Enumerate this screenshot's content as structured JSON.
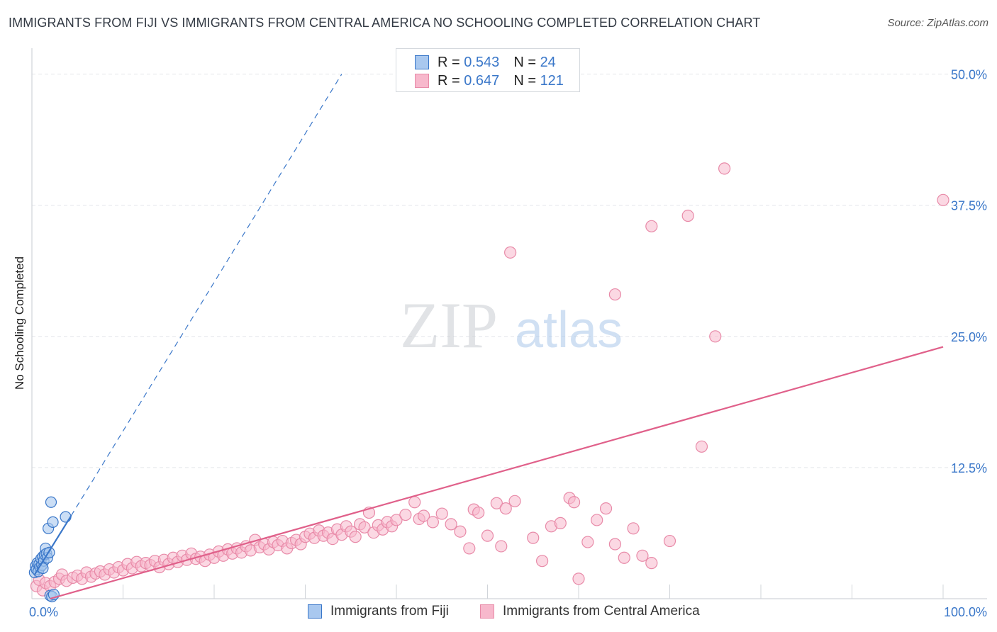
{
  "title": "IMMIGRANTS FROM FIJI VS IMMIGRANTS FROM CENTRAL AMERICA NO SCHOOLING COMPLETED CORRELATION CHART",
  "source": "Source: ZipAtlas.com",
  "watermark": {
    "zip": "ZIP",
    "atlas": "atlas"
  },
  "legend_top": {
    "rows": [
      {
        "r_label": "R =",
        "r_value": "0.543",
        "n_label": "N =",
        "n_value": "24"
      },
      {
        "r_label": "R =",
        "r_value": "0.647",
        "n_label": "N =",
        "n_value": "121"
      }
    ]
  },
  "colors": {
    "fiji_fill": "#a9c8ef",
    "fiji_stroke": "#3a77c9",
    "fiji_line": "#3a77c9",
    "ca_fill": "#f7b8cc",
    "ca_stroke": "#e88aa8",
    "ca_line": "#e0608a",
    "axis_text": "#3a77c9",
    "grid": "#e3e6ea"
  },
  "chart_data": {
    "type": "scatter",
    "title": "IMMIGRANTS FROM FIJI VS IMMIGRANTS FROM CENTRAL AMERICA NO SCHOOLING COMPLETED CORRELATION CHART",
    "xlabel": "",
    "ylabel": "No Schooling Completed",
    "xlim": [
      0,
      100
    ],
    "ylim": [
      0,
      52
    ],
    "x_tick_labels": [
      "0.0%",
      "100.0%"
    ],
    "y_ticks": [
      12.5,
      25.0,
      37.5,
      50.0
    ],
    "y_tick_labels": [
      "12.5%",
      "25.0%",
      "37.5%",
      "50.0%"
    ],
    "grid": true,
    "legend_position": "bottom",
    "series": [
      {
        "name": "Immigrants from Fiji",
        "R": 0.543,
        "N": 24,
        "trend": {
          "x": [
            0.3,
            4.3
          ],
          "y": [
            2.3,
            7.9
          ]
        },
        "trend_extension": {
          "x": [
            4.3,
            34.0
          ],
          "y": [
            7.9,
            50.0
          ]
        },
        "points": [
          {
            "x": 0.3,
            "y": 2.5
          },
          {
            "x": 0.4,
            "y": 3.1
          },
          {
            "x": 0.5,
            "y": 2.8
          },
          {
            "x": 0.6,
            "y": 3.4
          },
          {
            "x": 0.7,
            "y": 2.6
          },
          {
            "x": 0.8,
            "y": 3.3
          },
          {
            "x": 0.9,
            "y": 3.0
          },
          {
            "x": 1.0,
            "y": 3.8
          },
          {
            "x": 1.1,
            "y": 3.2
          },
          {
            "x": 1.2,
            "y": 4.0
          },
          {
            "x": 1.3,
            "y": 3.6
          },
          {
            "x": 1.4,
            "y": 4.2
          },
          {
            "x": 1.5,
            "y": 4.8
          },
          {
            "x": 1.6,
            "y": 4.3
          },
          {
            "x": 1.7,
            "y": 3.9
          },
          {
            "x": 1.8,
            "y": 6.7
          },
          {
            "x": 1.9,
            "y": 4.4
          },
          {
            "x": 2.0,
            "y": 0.3
          },
          {
            "x": 2.1,
            "y": 9.2
          },
          {
            "x": 2.2,
            "y": 0.2
          },
          {
            "x": 2.3,
            "y": 7.3
          },
          {
            "x": 2.4,
            "y": 0.4
          },
          {
            "x": 3.7,
            "y": 7.8
          },
          {
            "x": 1.2,
            "y": 2.9
          }
        ]
      },
      {
        "name": "Immigrants from Central America",
        "R": 0.647,
        "N": 121,
        "trend": {
          "x": [
            2.0,
            100.0
          ],
          "y": [
            0.0,
            24.0
          ]
        },
        "points": [
          {
            "x": 0.5,
            "y": 1.2
          },
          {
            "x": 0.8,
            "y": 1.8
          },
          {
            "x": 1.2,
            "y": 0.8
          },
          {
            "x": 1.5,
            "y": 1.5
          },
          {
            "x": 2.0,
            "y": 1.2
          },
          {
            "x": 2.5,
            "y": 1.6
          },
          {
            "x": 3.0,
            "y": 1.9
          },
          {
            "x": 3.3,
            "y": 2.3
          },
          {
            "x": 3.8,
            "y": 1.7
          },
          {
            "x": 4.5,
            "y": 2.0
          },
          {
            "x": 5.0,
            "y": 2.2
          },
          {
            "x": 5.5,
            "y": 1.9
          },
          {
            "x": 6.0,
            "y": 2.5
          },
          {
            "x": 6.5,
            "y": 2.1
          },
          {
            "x": 7.0,
            "y": 2.4
          },
          {
            "x": 7.5,
            "y": 2.6
          },
          {
            "x": 8.0,
            "y": 2.3
          },
          {
            "x": 8.5,
            "y": 2.8
          },
          {
            "x": 9.0,
            "y": 2.5
          },
          {
            "x": 9.5,
            "y": 3.0
          },
          {
            "x": 10.0,
            "y": 2.7
          },
          {
            "x": 10.5,
            "y": 3.3
          },
          {
            "x": 11.0,
            "y": 2.9
          },
          {
            "x": 11.5,
            "y": 3.5
          },
          {
            "x": 12.0,
            "y": 3.1
          },
          {
            "x": 12.5,
            "y": 3.4
          },
          {
            "x": 13.0,
            "y": 3.2
          },
          {
            "x": 13.5,
            "y": 3.6
          },
          {
            "x": 14.0,
            "y": 3.0
          },
          {
            "x": 14.5,
            "y": 3.7
          },
          {
            "x": 15.0,
            "y": 3.3
          },
          {
            "x": 15.5,
            "y": 3.9
          },
          {
            "x": 16.0,
            "y": 3.5
          },
          {
            "x": 16.5,
            "y": 4.1
          },
          {
            "x": 17.0,
            "y": 3.7
          },
          {
            "x": 17.5,
            "y": 4.3
          },
          {
            "x": 18.0,
            "y": 3.8
          },
          {
            "x": 18.5,
            "y": 4.0
          },
          {
            "x": 19.0,
            "y": 3.6
          },
          {
            "x": 19.5,
            "y": 4.2
          },
          {
            "x": 20.0,
            "y": 3.9
          },
          {
            "x": 20.5,
            "y": 4.5
          },
          {
            "x": 21.0,
            "y": 4.1
          },
          {
            "x": 21.5,
            "y": 4.7
          },
          {
            "x": 22.0,
            "y": 4.3
          },
          {
            "x": 22.5,
            "y": 4.8
          },
          {
            "x": 23.0,
            "y": 4.4
          },
          {
            "x": 23.5,
            "y": 5.0
          },
          {
            "x": 24.0,
            "y": 4.6
          },
          {
            "x": 24.5,
            "y": 5.6
          },
          {
            "x": 25.0,
            "y": 4.9
          },
          {
            "x": 25.5,
            "y": 5.2
          },
          {
            "x": 26.0,
            "y": 4.7
          },
          {
            "x": 26.5,
            "y": 5.4
          },
          {
            "x": 27.0,
            "y": 5.1
          },
          {
            "x": 27.5,
            "y": 5.5
          },
          {
            "x": 28.0,
            "y": 4.8
          },
          {
            "x": 28.5,
            "y": 5.3
          },
          {
            "x": 29.0,
            "y": 5.6
          },
          {
            "x": 29.5,
            "y": 5.2
          },
          {
            "x": 30.0,
            "y": 5.9
          },
          {
            "x": 30.5,
            "y": 6.2
          },
          {
            "x": 31.0,
            "y": 5.8
          },
          {
            "x": 31.5,
            "y": 6.5
          },
          {
            "x": 32.0,
            "y": 6.0
          },
          {
            "x": 32.5,
            "y": 6.3
          },
          {
            "x": 33.0,
            "y": 5.7
          },
          {
            "x": 33.5,
            "y": 6.6
          },
          {
            "x": 34.0,
            "y": 6.1
          },
          {
            "x": 34.5,
            "y": 6.9
          },
          {
            "x": 35.0,
            "y": 6.4
          },
          {
            "x": 35.5,
            "y": 5.9
          },
          {
            "x": 36.0,
            "y": 7.1
          },
          {
            "x": 36.5,
            "y": 6.8
          },
          {
            "x": 37.0,
            "y": 8.2
          },
          {
            "x": 37.5,
            "y": 6.3
          },
          {
            "x": 38.0,
            "y": 7.0
          },
          {
            "x": 38.5,
            "y": 6.6
          },
          {
            "x": 39.0,
            "y": 7.3
          },
          {
            "x": 39.5,
            "y": 6.9
          },
          {
            "x": 40.0,
            "y": 7.5
          },
          {
            "x": 41.0,
            "y": 8.0
          },
          {
            "x": 42.0,
            "y": 9.2
          },
          {
            "x": 42.5,
            "y": 7.6
          },
          {
            "x": 43.0,
            "y": 7.9
          },
          {
            "x": 44.0,
            "y": 7.3
          },
          {
            "x": 45.0,
            "y": 8.1
          },
          {
            "x": 46.0,
            "y": 7.1
          },
          {
            "x": 47.0,
            "y": 6.4
          },
          {
            "x": 48.0,
            "y": 4.8
          },
          {
            "x": 48.5,
            "y": 8.5
          },
          {
            "x": 49.0,
            "y": 8.2
          },
          {
            "x": 50.0,
            "y": 6.0
          },
          {
            "x": 51.0,
            "y": 9.1
          },
          {
            "x": 51.5,
            "y": 5.0
          },
          {
            "x": 52.0,
            "y": 8.6
          },
          {
            "x": 53.0,
            "y": 9.3
          },
          {
            "x": 55.0,
            "y": 5.8
          },
          {
            "x": 56.0,
            "y": 3.6
          },
          {
            "x": 57.0,
            "y": 6.9
          },
          {
            "x": 58.0,
            "y": 7.2
          },
          {
            "x": 59.0,
            "y": 9.6
          },
          {
            "x": 59.5,
            "y": 9.2
          },
          {
            "x": 60.0,
            "y": 1.9
          },
          {
            "x": 61.0,
            "y": 5.4
          },
          {
            "x": 62.0,
            "y": 7.5
          },
          {
            "x": 63.0,
            "y": 8.6
          },
          {
            "x": 64.0,
            "y": 5.2
          },
          {
            "x": 65.0,
            "y": 3.9
          },
          {
            "x": 66.0,
            "y": 6.7
          },
          {
            "x": 67.0,
            "y": 4.1
          },
          {
            "x": 68.0,
            "y": 3.4
          },
          {
            "x": 70.0,
            "y": 5.5
          },
          {
            "x": 52.5,
            "y": 33.0
          },
          {
            "x": 68.0,
            "y": 35.5
          },
          {
            "x": 72.0,
            "y": 36.5
          },
          {
            "x": 76.0,
            "y": 41.0
          },
          {
            "x": 100.0,
            "y": 38.0
          },
          {
            "x": 64.0,
            "y": 29.0
          },
          {
            "x": 75.0,
            "y": 25.0
          },
          {
            "x": 73.5,
            "y": 14.5
          }
        ]
      }
    ]
  },
  "bottom_legend": [
    "Immigrants from Fiji",
    "Immigrants from Central America"
  ]
}
